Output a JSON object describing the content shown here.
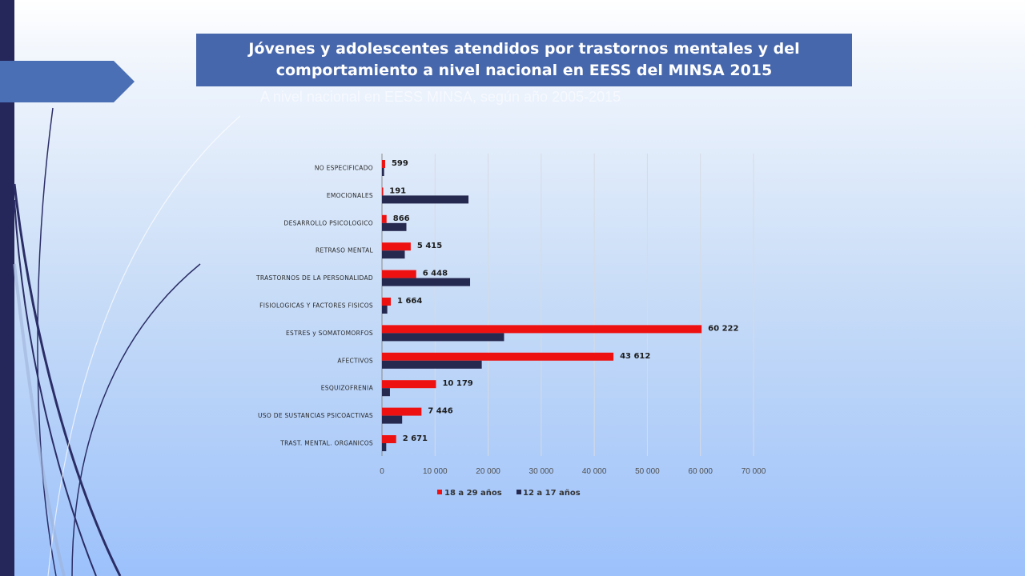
{
  "slide": {
    "title": "Jóvenes y adolescentes atendidos por trastornos mentales y del comportamiento a nivel nacional en EESS del  MINSA  2015",
    "ghost_text": "A nivel nacional en EESS MINSA, según año 2005-2015"
  },
  "chart_data": {
    "type": "bar",
    "orientation": "horizontal",
    "title": "",
    "xlabel": "",
    "ylabel": "",
    "xlim": [
      0,
      70000
    ],
    "x_ticks": [
      0,
      10000,
      20000,
      30000,
      40000,
      50000,
      60000,
      70000
    ],
    "x_tick_labels": [
      "0",
      "10 000",
      "20 000",
      "30 000",
      "40 000",
      "50 000",
      "60 000",
      "70 000"
    ],
    "grid": true,
    "legend_position": "bottom",
    "categories": [
      "NO ESPECIFICADO",
      "EMOCIONALES",
      "DESARROLLO PSICOLOGICO",
      "RETRASO MENTAL",
      "TRASTORNOS DE LA PERSONALIDAD",
      "FISIOLOGICAS Y FACTORES FISICOS",
      "ESTRES  y  SOMATOMORFOS",
      "AFECTIVOS",
      "ESQUIZOFRENIA",
      "USO DE SUSTANCIAS PSICOACTIVAS",
      "TRAST. MENTAL.  ORGANICOS"
    ],
    "series": [
      {
        "name": "18 a 29 años",
        "color": "#ee1111",
        "values": [
          599,
          191,
          866,
          5415,
          6448,
          1664,
          60222,
          43612,
          10179,
          7446,
          2671
        ],
        "labels": [
          "599",
          "191",
          "866",
          "5 415",
          "6 448",
          "1 664",
          "60 222",
          "43 612",
          "10 179",
          "7 446",
          "2 671"
        ]
      },
      {
        "name": "12 a 17 años",
        "color": "#25284f",
        "values": [
          400,
          16300,
          4600,
          4300,
          16600,
          1000,
          23000,
          18800,
          1500,
          3800,
          800
        ]
      }
    ]
  }
}
